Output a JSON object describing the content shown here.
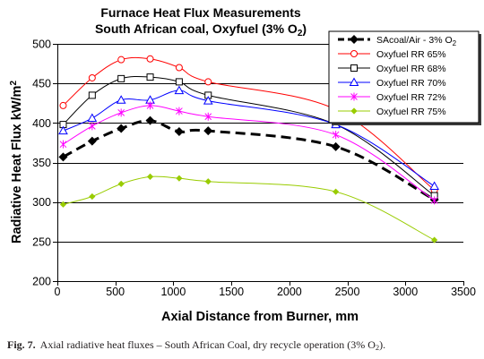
{
  "chart_data": {
    "type": "line",
    "title": "Furnace Heat Flux Measurements",
    "subtitle": {
      "text": "South African coal, Oxyfuel (3% O",
      "sub": "2",
      "end": ")"
    },
    "xlabel": "Axial Distance from Burner, mm",
    "ylabel": {
      "text": "Radiative Heat Flux kW/m",
      "sup": "2"
    },
    "xlim": [
      0,
      3500
    ],
    "ylim": [
      200,
      500
    ],
    "x_ticks": [
      0,
      500,
      1000,
      1500,
      2000,
      2500,
      3000,
      3500
    ],
    "y_ticks": [
      200,
      250,
      300,
      350,
      400,
      450,
      500
    ],
    "grid": "horizontal",
    "legend_position": "top-right",
    "smooth": true,
    "x": [
      50,
      300,
      550,
      800,
      1050,
      1300,
      2400,
      3250
    ],
    "series": [
      {
        "name": "SAcoal/Air - 3% O",
        "name_sub": "2",
        "color": "#000000",
        "marker": "diamond-large",
        "line": "dashed",
        "values": [
          357,
          377,
          393,
          403,
          389,
          390,
          370,
          303
        ]
      },
      {
        "name": "Oxyfuel RR 65%",
        "color": "#ff0000",
        "marker": "circle",
        "line": "solid",
        "values": [
          422,
          457,
          480,
          481,
          470,
          452,
          417,
          315
        ]
      },
      {
        "name": "Oxyfuel RR 68%",
        "color": "#000000",
        "marker": "square",
        "line": "solid",
        "values": [
          398,
          435,
          456,
          458,
          452,
          435,
          398,
          308
        ]
      },
      {
        "name": "Oxyfuel RR 70%",
        "color": "#0000ff",
        "marker": "triangle",
        "line": "solid",
        "values": [
          390,
          406,
          429,
          429,
          441,
          428,
          398,
          320
        ]
      },
      {
        "name": "Oxyfuel RR 72%",
        "color": "#ff00ff",
        "marker": "star",
        "line": "solid",
        "values": [
          373,
          396,
          413,
          422,
          415,
          408,
          385,
          302
        ]
      },
      {
        "name": "Oxyfuel RR 75%",
        "color": "#99cc00",
        "marker": "diamond-small",
        "line": "solid",
        "values": [
          297,
          307,
          323,
          332,
          330,
          326,
          313,
          252
        ]
      }
    ]
  },
  "caption": {
    "label": "Fig. 7.",
    "text": "Axial radiative heat fluxes – South African Coal, dry recycle operation (3% O",
    "sub": "2",
    "end": ")."
  }
}
